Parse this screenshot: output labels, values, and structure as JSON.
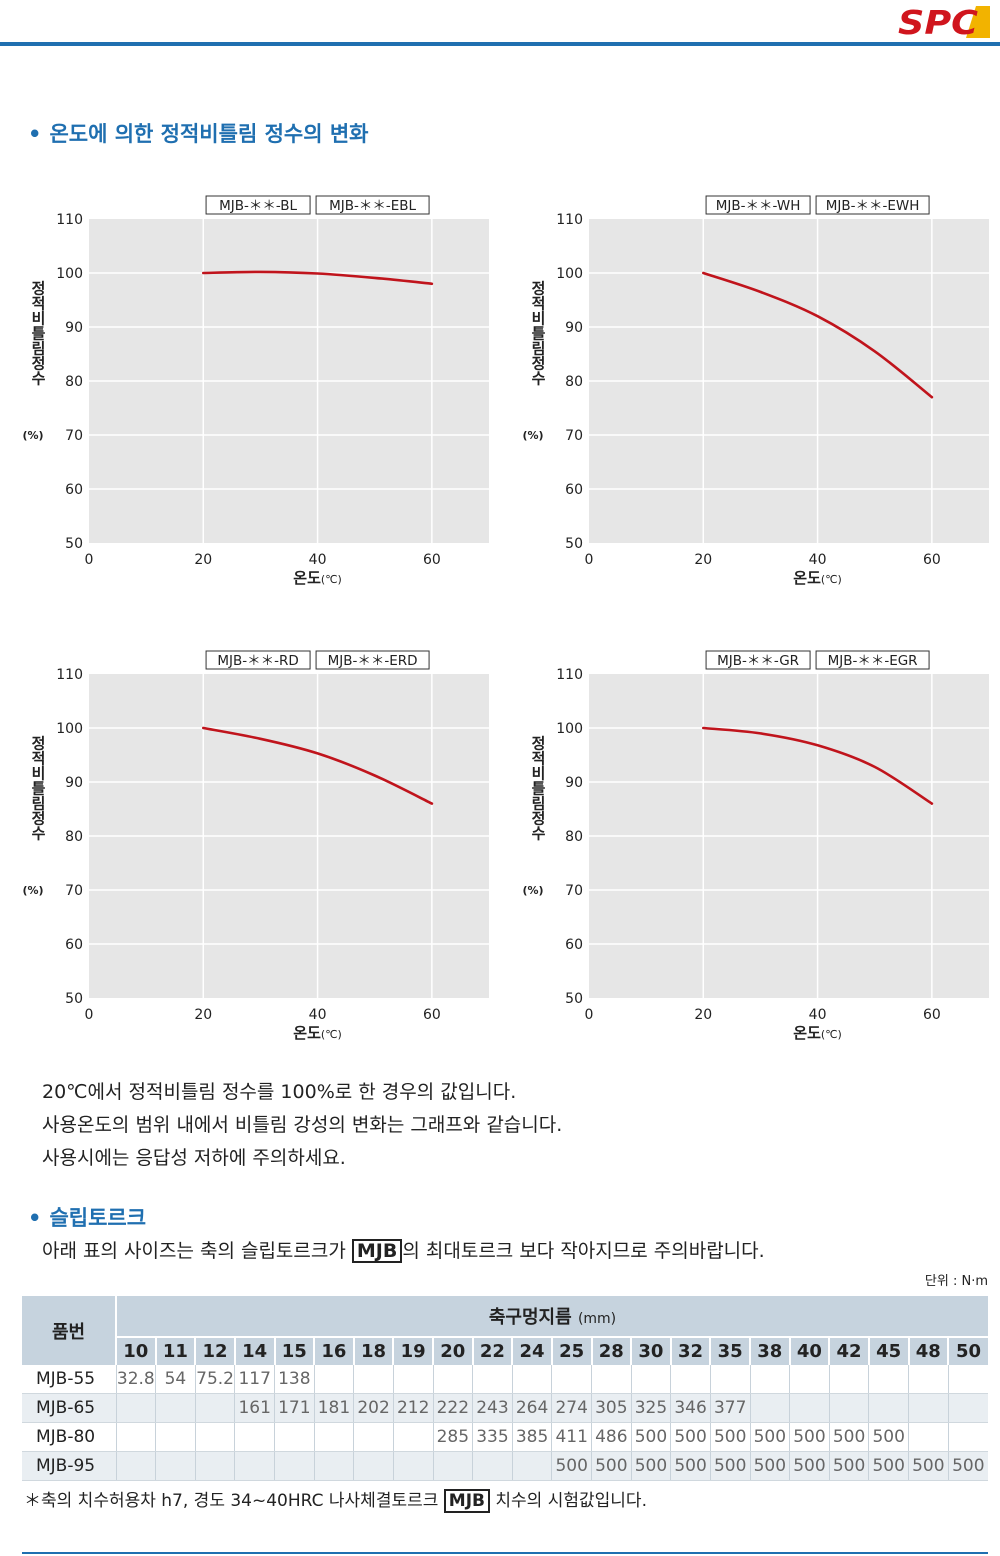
{
  "header": {
    "logo_text": "SPC",
    "colors": {
      "accent": "#1f6fb0",
      "logo_red": "#d0151d",
      "logo_gold": "#f2b300"
    }
  },
  "section1": {
    "bullet": "•",
    "title": "온도에 의한 정적비틀림 정수의 변화"
  },
  "chart_data": [
    {
      "type": "line",
      "legend_labels": [
        "MJB-＊＊-BL",
        "MJB-＊＊-EBL"
      ],
      "xlabel": "온도",
      "xunit": "(℃)",
      "ylabel": "정적비틀림정수",
      "yunit": "(%)",
      "xlim": [
        0,
        70
      ],
      "ylim": [
        50,
        110
      ],
      "xticks": [
        0,
        20,
        40,
        60
      ],
      "yticks": [
        110,
        100,
        90,
        80,
        70,
        60,
        50
      ],
      "grid": true,
      "series": [
        {
          "x": [
            20,
            30,
            40,
            50,
            60
          ],
          "y": [
            100,
            100.2,
            99.9,
            99.1,
            98
          ]
        }
      ],
      "colors": {
        "line": "#c0141c",
        "plot_bg": "#e6e6e6",
        "grid": "#ffffff"
      }
    },
    {
      "type": "line",
      "legend_labels": [
        "MJB-＊＊-WH",
        "MJB-＊＊-EWH"
      ],
      "xlabel": "온도",
      "xunit": "(℃)",
      "ylabel": "정적비틀림정수",
      "yunit": "(%)",
      "xlim": [
        0,
        70
      ],
      "ylim": [
        50,
        110
      ],
      "xticks": [
        0,
        20,
        40,
        60
      ],
      "yticks": [
        110,
        100,
        90,
        80,
        70,
        60,
        50
      ],
      "grid": true,
      "series": [
        {
          "x": [
            20,
            30,
            40,
            50,
            60
          ],
          "y": [
            100,
            96.5,
            92,
            85.5,
            77
          ]
        }
      ],
      "colors": {
        "line": "#c0141c",
        "plot_bg": "#e6e6e6",
        "grid": "#ffffff"
      }
    },
    {
      "type": "line",
      "legend_labels": [
        "MJB-＊＊-RD",
        "MJB-＊＊-ERD"
      ],
      "xlabel": "온도",
      "xunit": "(℃)",
      "ylabel": "정적비틀림정수",
      "yunit": "(%)",
      "xlim": [
        0,
        70
      ],
      "ylim": [
        50,
        110
      ],
      "xticks": [
        0,
        20,
        40,
        60
      ],
      "yticks": [
        110,
        100,
        90,
        80,
        70,
        60,
        50
      ],
      "grid": true,
      "series": [
        {
          "x": [
            20,
            30,
            40,
            50,
            60
          ],
          "y": [
            100,
            98,
            95.3,
            91.2,
            86
          ]
        }
      ],
      "colors": {
        "line": "#c0141c",
        "plot_bg": "#e6e6e6",
        "grid": "#ffffff"
      }
    },
    {
      "type": "line",
      "legend_labels": [
        "MJB-＊＊-GR",
        "MJB-＊＊-EGR"
      ],
      "xlabel": "온도",
      "xunit": "(℃)",
      "ylabel": "정적비틀림정수",
      "yunit": "(%)",
      "xlim": [
        0,
        70
      ],
      "ylim": [
        50,
        110
      ],
      "xticks": [
        0,
        20,
        40,
        60
      ],
      "yticks": [
        110,
        100,
        90,
        80,
        70,
        60,
        50
      ],
      "grid": true,
      "series": [
        {
          "x": [
            20,
            30,
            40,
            50,
            60
          ],
          "y": [
            100,
            99,
            96.8,
            92.8,
            86
          ]
        }
      ],
      "colors": {
        "line": "#c0141c",
        "plot_bg": "#e6e6e6",
        "grid": "#ffffff"
      }
    }
  ],
  "notes": [
    "20℃에서 정적비틀림 정수를 100%로 한 경우의 값입니다.",
    "사용온도의 범위 내에서 비틀림 강성의 변화는 그래프와 같습니다.",
    "사용시에는 응답성 저하에 주의하세요."
  ],
  "section2": {
    "bullet": "•",
    "title": "슬립토르크",
    "intro_before": "아래 표의 사이즈는 축의 슬립토르크가 ",
    "intro_boxed": "MJB",
    "intro_after": "의 최대토르크 보다 작아지므로 주의바랍니다.",
    "unit": "단위 : N·m"
  },
  "table": {
    "header_part": "품번",
    "header_shaft": "축구멍지름",
    "header_shaft_unit": "(mm)",
    "sizes": [
      "10",
      "11",
      "12",
      "14",
      "15",
      "16",
      "18",
      "19",
      "20",
      "22",
      "24",
      "25",
      "28",
      "30",
      "32",
      "35",
      "38",
      "40",
      "42",
      "45",
      "48",
      "50"
    ],
    "rows": [
      {
        "name": "MJB-55",
        "values": [
          "32.8",
          "54",
          "75.2",
          "117",
          "138",
          "",
          "",
          "",
          "",
          "",
          "",
          "",
          "",
          "",
          "",
          "",
          "",
          "",
          "",
          "",
          "",
          ""
        ]
      },
      {
        "name": "MJB-65",
        "values": [
          "",
          "",
          "",
          "161",
          "171",
          "181",
          "202",
          "212",
          "222",
          "243",
          "264",
          "274",
          "305",
          "325",
          "346",
          "377",
          "",
          "",
          "",
          "",
          "",
          ""
        ]
      },
      {
        "name": "MJB-80",
        "values": [
          "",
          "",
          "",
          "",
          "",
          "",
          "",
          "",
          "285",
          "335",
          "385",
          "411",
          "486",
          "500",
          "500",
          "500",
          "500",
          "500",
          "500",
          "500",
          "",
          ""
        ]
      },
      {
        "name": "MJB-95",
        "values": [
          "",
          "",
          "",
          "",
          "",
          "",
          "",
          "",
          "",
          "",
          "",
          "500",
          "500",
          "500",
          "500",
          "500",
          "500",
          "500",
          "500",
          "500",
          "500",
          "500"
        ]
      }
    ]
  },
  "footnote": {
    "before": "＊축의 치수허용차 h7, 경도 34~40HRC 나사체결토르크 ",
    "boxed": "MJB",
    "after": " 치수의 시험값입니다."
  }
}
